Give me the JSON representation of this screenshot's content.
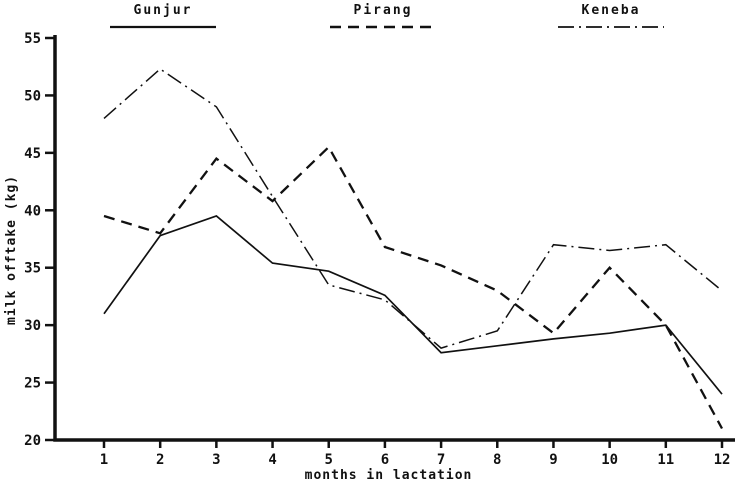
{
  "figure": {
    "background": "#ffffff",
    "ink": "#111111"
  },
  "chart_data": {
    "type": "line",
    "title": "",
    "xlabel": "months in lactation",
    "ylabel": "milk offtake (kg)",
    "xlim": [
      1,
      12
    ],
    "ylim": [
      20,
      55
    ],
    "xticks": [
      1,
      2,
      3,
      4,
      5,
      6,
      7,
      8,
      9,
      10,
      11,
      12
    ],
    "yticks": [
      20,
      25,
      30,
      35,
      40,
      45,
      50,
      55
    ],
    "grid": false,
    "legend_position": "top",
    "x": [
      1,
      2,
      3,
      4,
      5,
      6,
      7,
      8,
      9,
      10,
      11,
      12
    ],
    "series": [
      {
        "name": "Gunjur",
        "line_style": "solid",
        "values": [
          31.0,
          37.8,
          39.5,
          35.4,
          34.7,
          32.6,
          27.6,
          28.2,
          28.8,
          29.3,
          30.0,
          24.0
        ]
      },
      {
        "name": "Pirang",
        "line_style": "dashed",
        "values": [
          39.5,
          38.0,
          44.5,
          40.8,
          45.5,
          36.8,
          35.2,
          33.0,
          29.3,
          35.0,
          30.0,
          21.0
        ]
      },
      {
        "name": "Keneba",
        "line_style": "dashdot",
        "values": [
          48.0,
          52.3,
          49.0,
          41.2,
          33.5,
          32.2,
          28.0,
          29.5,
          37.0,
          36.5,
          37.0,
          33.0
        ]
      }
    ]
  }
}
